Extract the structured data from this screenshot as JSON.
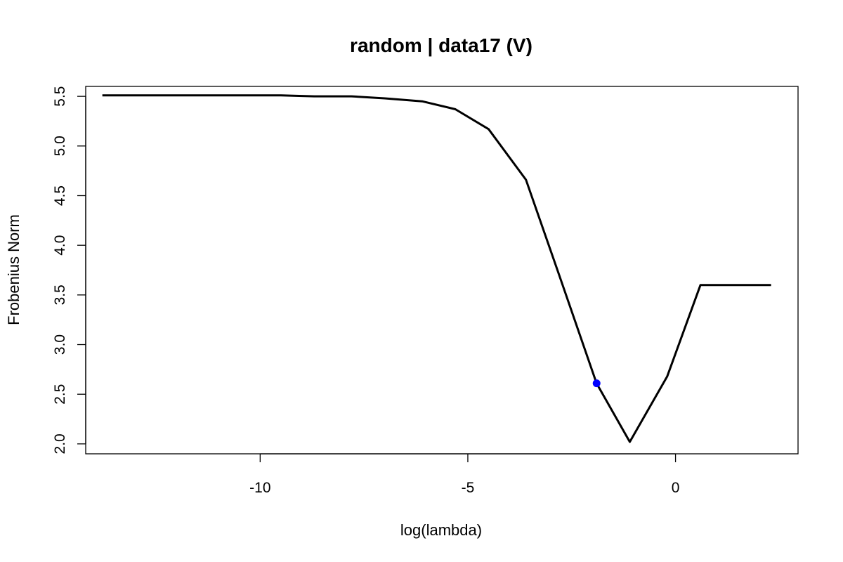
{
  "chart_data": {
    "type": "line",
    "title": "random | data17 (V)",
    "xlabel": "log(lambda)",
    "ylabel": "Frobenius Norm",
    "xlim": [
      -14.2,
      2.95
    ],
    "ylim": [
      1.9,
      5.6
    ],
    "x_ticks": [
      -10,
      -5,
      0
    ],
    "x_tick_labels": [
      "-10",
      "-5",
      "0"
    ],
    "y_ticks": [
      2.0,
      2.5,
      3.0,
      3.5,
      4.0,
      4.5,
      5.0,
      5.5
    ],
    "y_tick_labels": [
      "2.0",
      "2.5",
      "3.0",
      "3.5",
      "4.0",
      "4.5",
      "5.0",
      "5.5"
    ],
    "grid": false,
    "legend": "none",
    "series": [
      {
        "color": "#000000",
        "x": [
          -13.8,
          -13.0,
          -12.1,
          -11.2,
          -10.4,
          -9.5,
          -8.7,
          -7.8,
          -7.0,
          -6.1,
          -5.3,
          -4.5,
          -3.6,
          -2.8,
          -1.9,
          -1.1,
          -0.2,
          0.6,
          1.5,
          2.3
        ],
        "y": [
          5.51,
          5.51,
          5.51,
          5.51,
          5.51,
          5.51,
          5.5,
          5.5,
          5.48,
          5.45,
          5.37,
          5.17,
          4.66,
          3.7,
          2.61,
          2.02,
          2.68,
          3.6,
          3.6,
          3.6
        ]
      }
    ],
    "highlight_point": {
      "x": -1.9,
      "y": 2.61,
      "color": "#0000ff"
    }
  }
}
